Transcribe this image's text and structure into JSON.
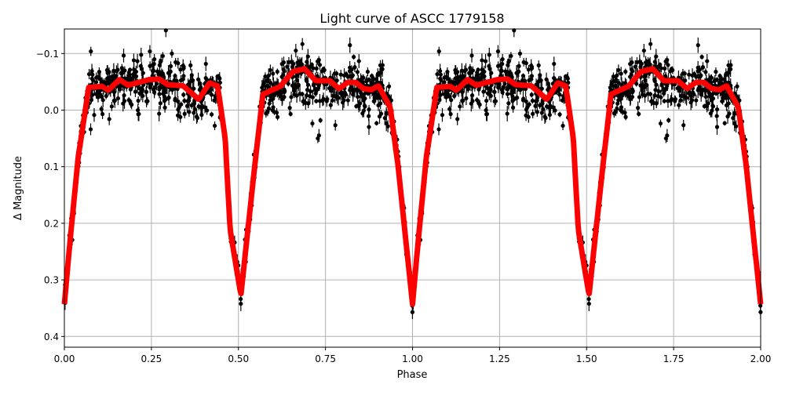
{
  "chart_data": {
    "type": "scatter",
    "title": "Light curve of ASCC 1779158",
    "xlabel": "Phase",
    "ylabel": "Δ Magnitude",
    "xlim": [
      0,
      2
    ],
    "ylim": [
      0.42,
      -0.143
    ],
    "y_inverted": true,
    "grid": true,
    "x_ticks": [
      "0.00",
      "0.25",
      "0.50",
      "0.75",
      "1.00",
      "1.25",
      "1.50",
      "1.75",
      "2.00"
    ],
    "x_tick_values": [
      0,
      0.25,
      0.5,
      0.75,
      1.0,
      1.25,
      1.5,
      1.75,
      2.0
    ],
    "y_ticks": [
      "−0.1",
      "0.0",
      "0.1",
      "0.2",
      "0.3",
      "0.4"
    ],
    "y_tick_values": [
      -0.1,
      0.0,
      0.1,
      0.2,
      0.3,
      0.4
    ],
    "series": [
      {
        "kind": "model-curve",
        "color": "#ff0000",
        "repeat_period": 1.0,
        "x": [
          0.0,
          0.018,
          0.04,
          0.07,
          0.108,
          0.126,
          0.158,
          0.183,
          0.244,
          0.273,
          0.296,
          0.341,
          0.386,
          0.417,
          0.44,
          0.462,
          0.476,
          0.507,
          0.543,
          0.57,
          0.62,
          0.656,
          0.69,
          0.722,
          0.762,
          0.789,
          0.814,
          0.837,
          0.859,
          0.882,
          0.902,
          0.936,
          0.958,
          1.0
        ],
        "y": [
          0.343,
          0.22,
          0.082,
          -0.04,
          -0.042,
          -0.035,
          -0.054,
          -0.044,
          -0.054,
          -0.055,
          -0.045,
          -0.043,
          -0.019,
          -0.048,
          -0.043,
          0.05,
          0.211,
          0.327,
          0.12,
          -0.028,
          -0.042,
          -0.068,
          -0.073,
          -0.052,
          -0.052,
          -0.038,
          -0.049,
          -0.049,
          -0.038,
          -0.036,
          -0.043,
          -0.005,
          0.096,
          0.343
        ]
      },
      {
        "kind": "observations-with-errorbars",
        "color": "#000000",
        "note_scatter": "phase-folded measurements scattered around the model, shown twice (phase 0–2)"
      }
    ]
  }
}
